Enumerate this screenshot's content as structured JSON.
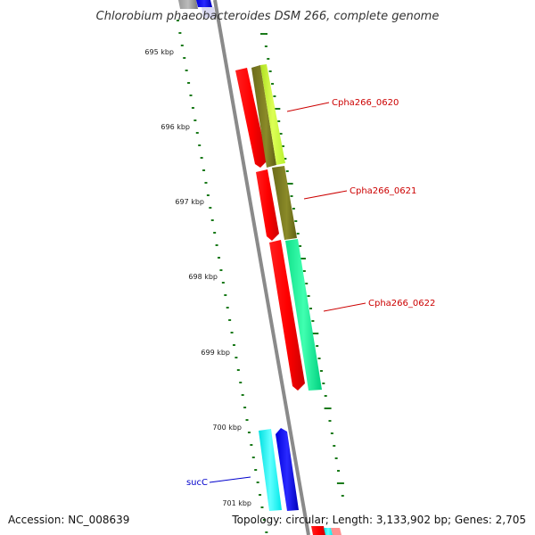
{
  "title": "Chlorobium phaeobacteroides DSM 266, complete genome",
  "kbp_labels": [
    "695 kbp",
    "696 kbp",
    "697 kbp",
    "698 kbp",
    "699 kbp",
    "700 kbp",
    "701 kbp"
  ],
  "genes": [
    {
      "name": "Cpha266_0620",
      "color": "#cc0000"
    },
    {
      "name": "Cpha266_0621",
      "color": "#cc0000"
    },
    {
      "name": "Cpha266_0622",
      "color": "#cc0000"
    },
    {
      "name": "sucC",
      "color": "#0000cc"
    }
  ],
  "colors": {
    "forward_gene": "#ff0000",
    "olive_track": "#808020",
    "lime_track": "#ccff33",
    "teal_track": "#00ff99",
    "cyan_track": "#00ffff",
    "blue_gene": "#0000ff",
    "tick": "#1a7a1a",
    "backbone": "#808080"
  },
  "footer": {
    "accession": "Accession: NC_008639",
    "topology": "Topology: circular; Length: 3,133,902 bp; Genes: 2,705"
  }
}
